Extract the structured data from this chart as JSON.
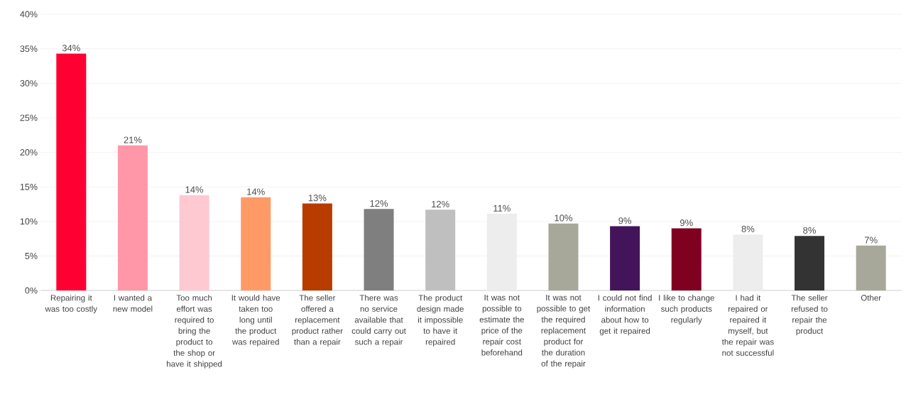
{
  "chart_data": {
    "type": "bar",
    "categories": [
      "Repairing it was too costly",
      "I wanted a new model",
      "Too much effort was required to bring the product to the shop or have it shipped",
      "It would have taken too long until the product was repaired",
      "The seller offered a replacement product rather than a repair",
      "There was no service available that could carry out such a repair",
      "The product design made it impossible to have it repaired",
      "It was not possible to estimate the price of the repair cost beforehand",
      "It was not possible to get the required replacement product for the duration of the repair",
      "I could not find information about how to get it repaired",
      "I like to change such products regularly",
      "I had it repaired or repaired it myself, but the repair was not successful",
      "The seller refused to repair the product",
      "Other"
    ],
    "values": [
      34.3,
      21.0,
      13.8,
      13.5,
      12.6,
      11.8,
      11.7,
      11.1,
      9.7,
      9.3,
      9.0,
      8.1,
      7.9,
      6.5
    ],
    "value_labels": [
      "34%",
      "21%",
      "14%",
      "14%",
      "13%",
      "12%",
      "12%",
      "11%",
      "10%",
      "9%",
      "9%",
      "8%",
      "8%",
      "7%"
    ],
    "colors": [
      "#ff0033",
      "#ff97a8",
      "#ffc9d2",
      "#ff9966",
      "#b83c00",
      "#7f7f7f",
      "#bfbfbf",
      "#ededed",
      "#a8a89a",
      "#44145a",
      "#800020",
      "#ededed",
      "#333333",
      "#a8a89a"
    ],
    "ylim": [
      0,
      40
    ],
    "yticks": [
      {
        "value": 0,
        "label": "0%"
      },
      {
        "value": 5,
        "label": "5%"
      },
      {
        "value": 10,
        "label": "10%"
      },
      {
        "value": 15,
        "label": "15%"
      },
      {
        "value": 20,
        "label": "20%"
      },
      {
        "value": 25,
        "label": "25%"
      },
      {
        "value": 30,
        "label": "30%"
      },
      {
        "value": 35,
        "label": "35%"
      },
      {
        "value": 40,
        "label": "40%"
      }
    ],
    "grid": "y"
  }
}
